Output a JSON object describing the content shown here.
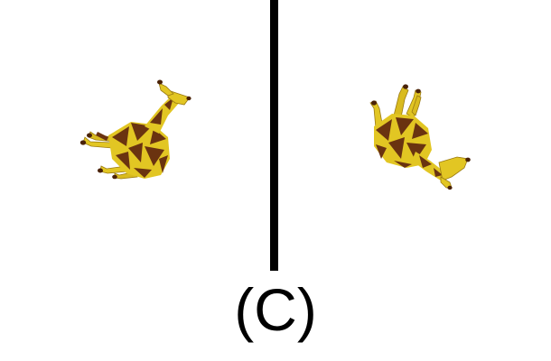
{
  "caption": "(C)",
  "colors": {
    "background": "#ffffff",
    "divider": "#000000",
    "giraffe_yellow": "#e2c623",
    "giraffe_brown": "#6a3310",
    "giraffe_dark": "#3f1d08",
    "text": "#000000"
  }
}
